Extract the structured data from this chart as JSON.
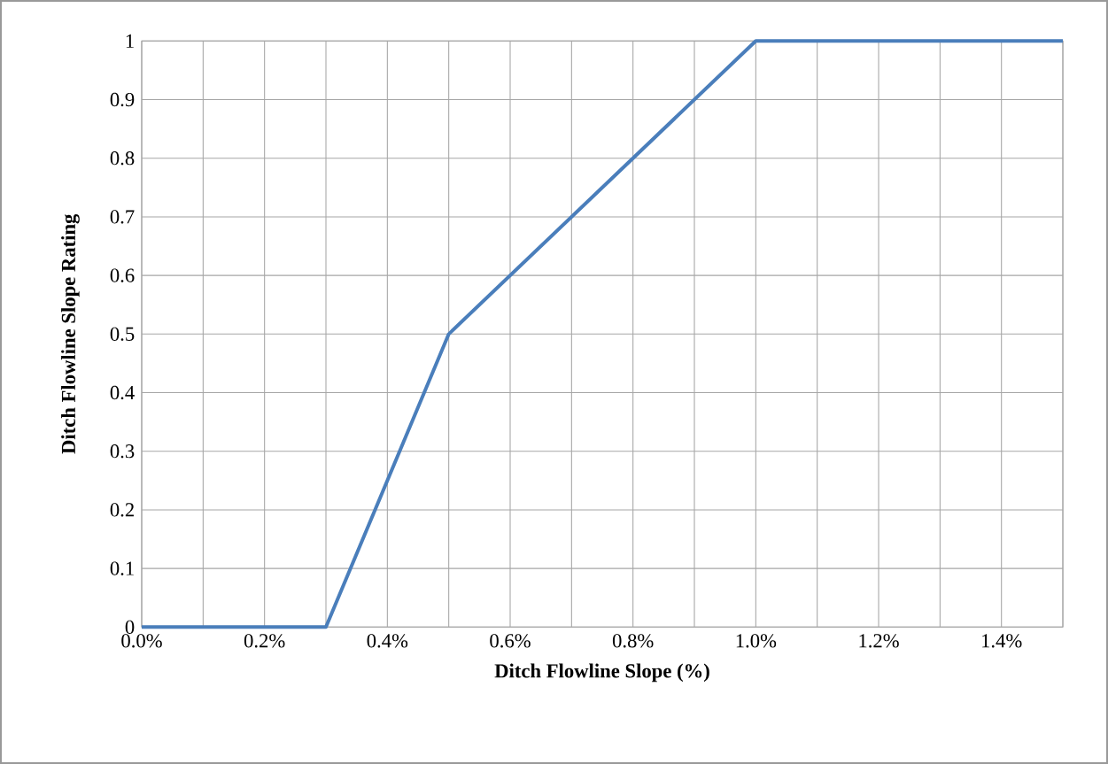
{
  "chart_data": {
    "type": "line",
    "xlabel": "Ditch Flowline Slope (%)",
    "ylabel": "Ditch Flowline Slope Rating",
    "x": [
      0,
      0.3,
      0.5,
      1.0,
      1.5
    ],
    "series": [
      {
        "color": "#4a7ebb",
        "values": [
          0,
          0,
          0.5,
          1,
          1
        ]
      }
    ],
    "xlim": [
      0,
      1.5
    ],
    "ylim": [
      0,
      1
    ],
    "xticks": [
      {
        "value": 0,
        "label": "0.0%"
      },
      {
        "value": 0.1,
        "label": null
      },
      {
        "value": 0.2,
        "label": "0.2%"
      },
      {
        "value": 0.3,
        "label": null
      },
      {
        "value": 0.4,
        "label": "0.4%"
      },
      {
        "value": 0.5,
        "label": null
      },
      {
        "value": 0.6,
        "label": "0.6%"
      },
      {
        "value": 0.7,
        "label": null
      },
      {
        "value": 0.8,
        "label": "0.8%"
      },
      {
        "value": 0.9,
        "label": null
      },
      {
        "value": 1.0,
        "label": "1.0%"
      },
      {
        "value": 1.1,
        "label": null
      },
      {
        "value": 1.2,
        "label": "1.2%"
      },
      {
        "value": 1.3,
        "label": null
      },
      {
        "value": 1.4,
        "label": "1.4%"
      },
      {
        "value": 1.5,
        "label": null
      }
    ],
    "yticks": [
      0,
      0.1,
      0.2,
      0.3,
      0.4,
      0.5,
      0.6,
      0.7,
      0.8,
      0.9,
      1
    ],
    "grid": true,
    "line_style": "solid"
  }
}
